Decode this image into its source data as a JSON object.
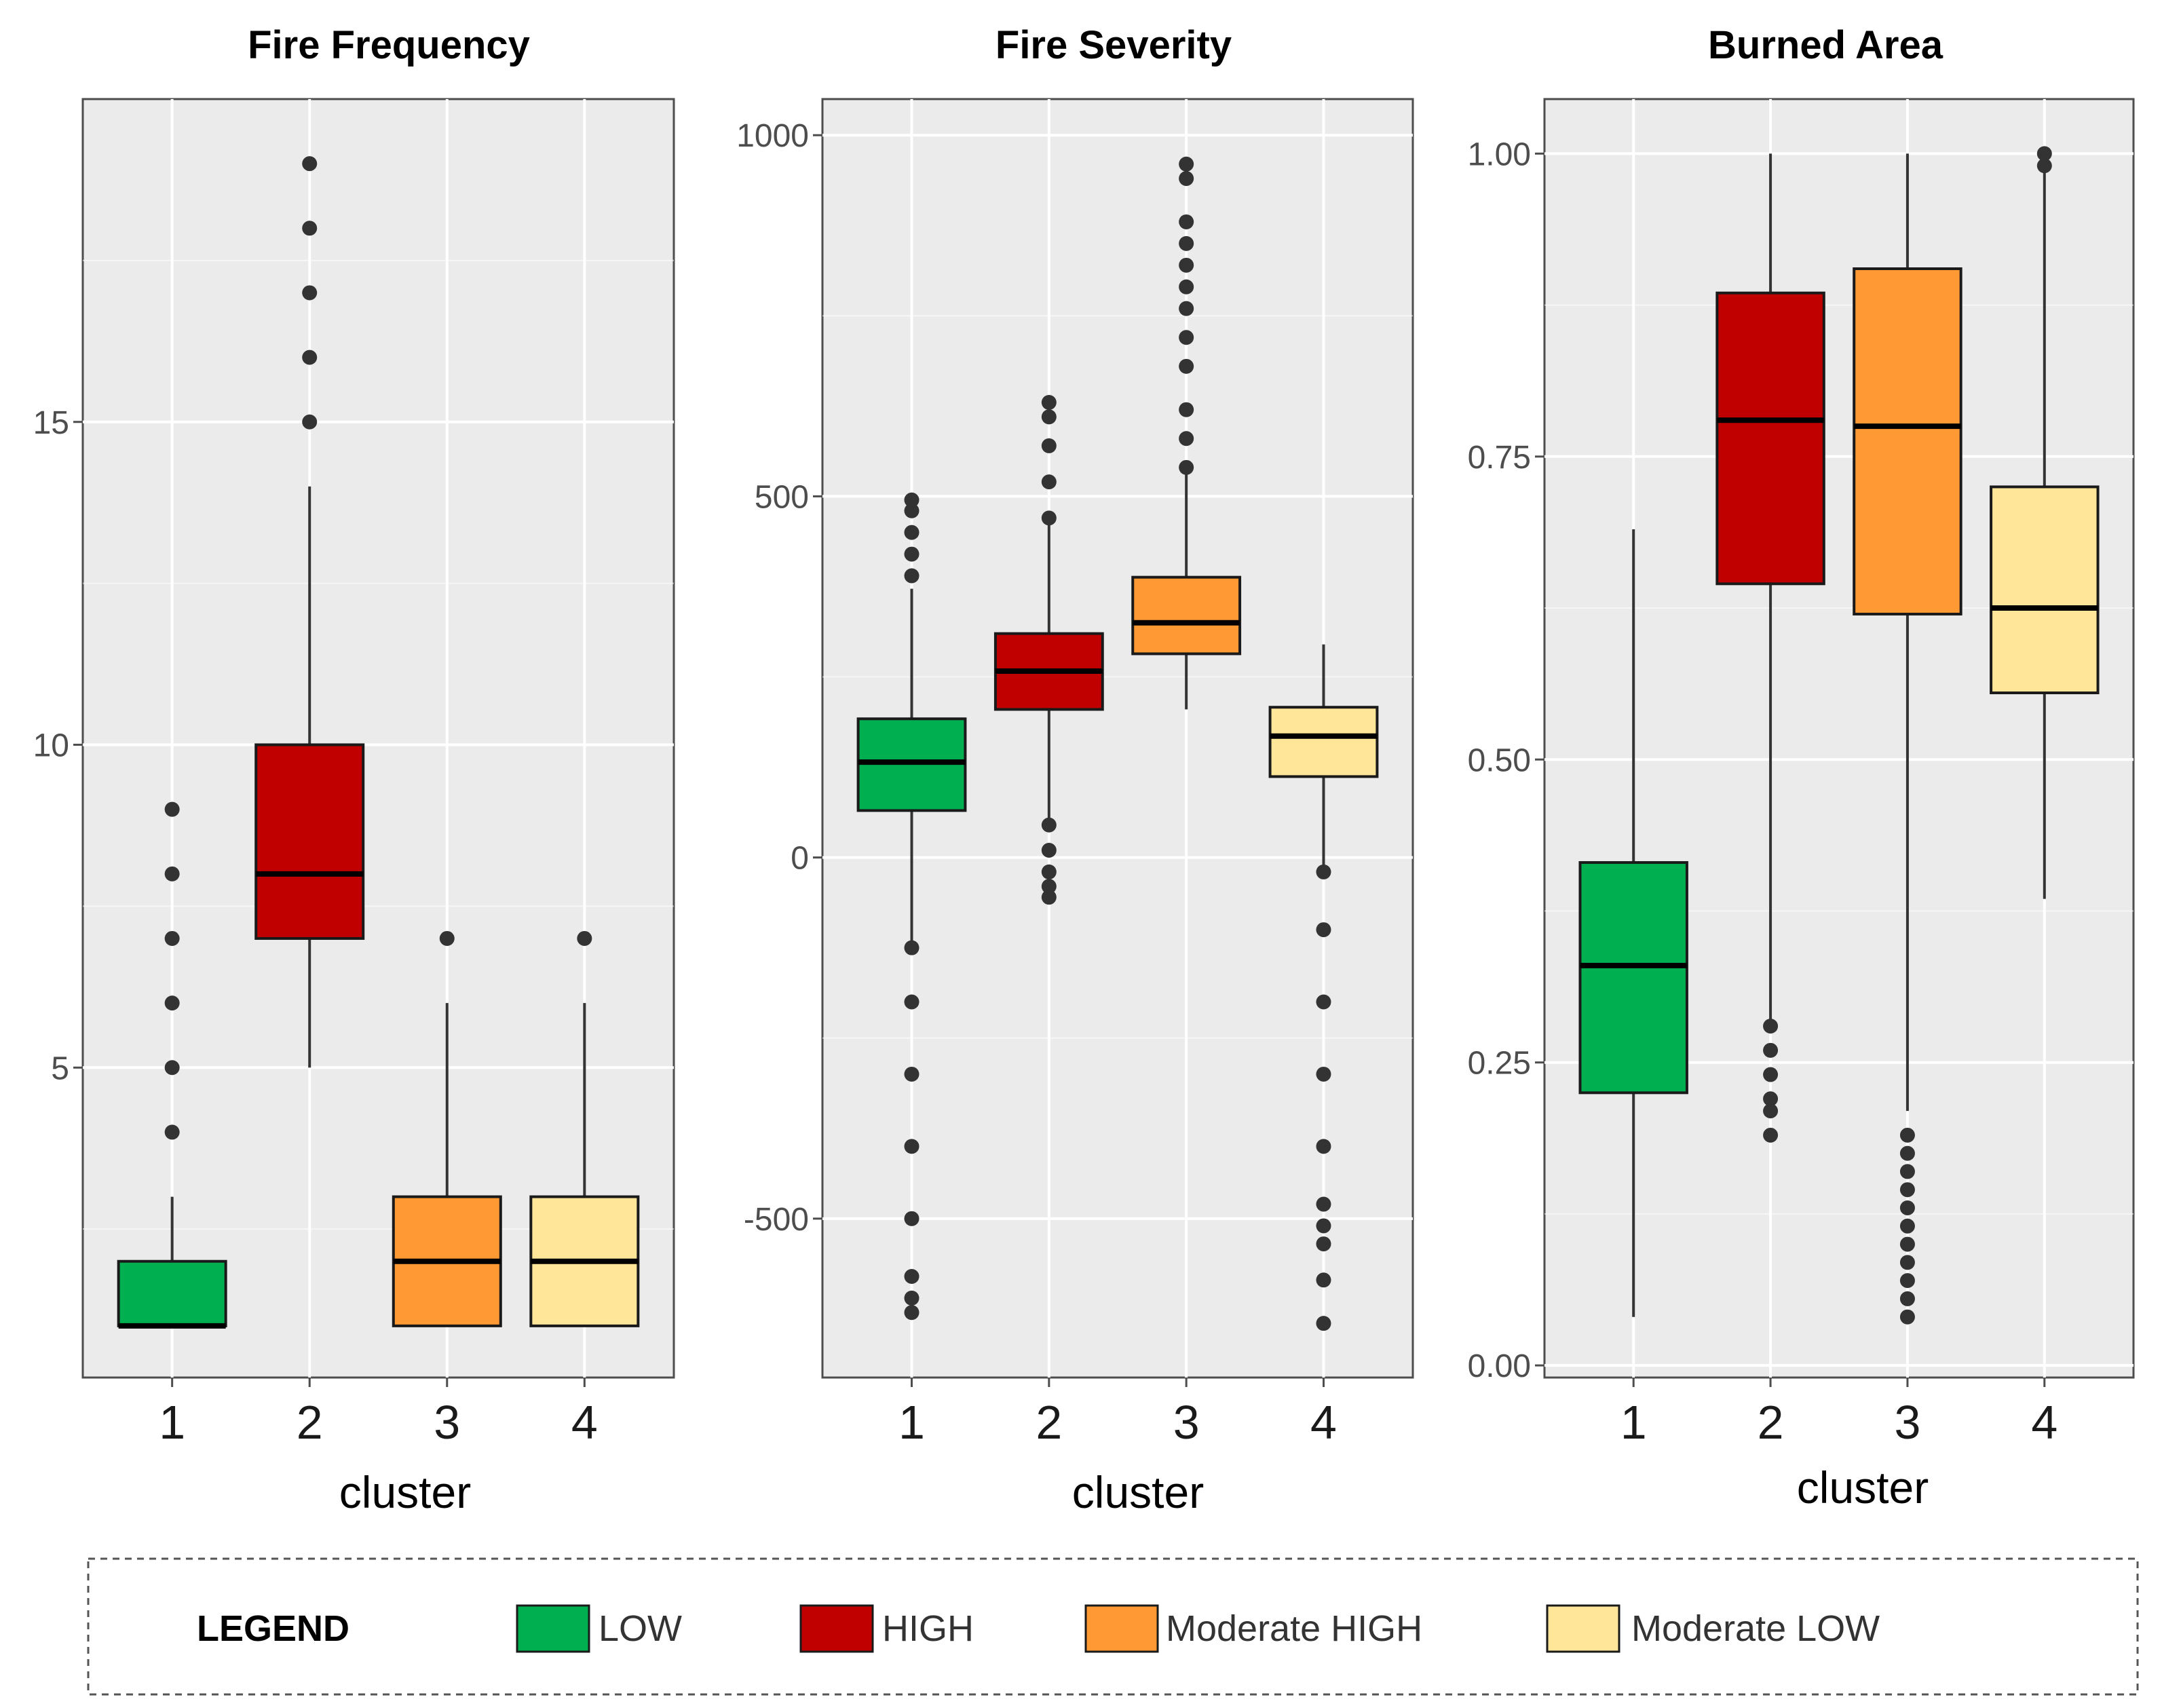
{
  "colors": {
    "panel_background": "#ebebeb",
    "grid_major": "#ffffff",
    "whisker": "#333333",
    "outlier": "#333333",
    "box_border": "#1a1a1a",
    "LOW": "#00b050",
    "HIGH": "#c00000",
    "Moderate HIGH": "#ff9933",
    "Moderate LOW": "#ffe699"
  },
  "legend": {
    "title": "LEGEND",
    "entries": [
      {
        "label": "LOW",
        "color": "#00b050"
      },
      {
        "label": "HIGH",
        "color": "#c00000"
      },
      {
        "label": "Moderate HIGH",
        "color": "#ff9933"
      },
      {
        "label": "Moderate LOW",
        "color": "#ffe699"
      }
    ]
  },
  "chart_data": [
    {
      "type": "box",
      "title": "Fire Frequency",
      "xlabel": "cluster",
      "ylabel": "",
      "categories": [
        "1",
        "2",
        "3",
        "4"
      ],
      "ylim": [
        0.2,
        20
      ],
      "yticks": [
        5,
        10,
        15
      ],
      "ytick_labels": [
        "5",
        "10",
        "15"
      ],
      "boxes": [
        {
          "cluster": "1",
          "group": "LOW",
          "q1": 1,
          "median": 1,
          "q3": 2,
          "whisker_low": 1,
          "whisker_high": 3,
          "outliers": [
            4,
            5,
            6,
            7,
            8,
            9
          ]
        },
        {
          "cluster": "2",
          "group": "HIGH",
          "q1": 7,
          "median": 8,
          "q3": 10,
          "whisker_low": 5,
          "whisker_high": 14,
          "outliers": [
            15,
            16,
            17,
            18,
            19
          ]
        },
        {
          "cluster": "3",
          "group": "Moderate HIGH",
          "q1": 1,
          "median": 2,
          "q3": 3,
          "whisker_low": 1,
          "whisker_high": 6,
          "outliers": [
            7
          ]
        },
        {
          "cluster": "4",
          "group": "Moderate LOW",
          "q1": 1,
          "median": 2,
          "q3": 3,
          "whisker_low": 1,
          "whisker_high": 6,
          "outliers": [
            7
          ]
        }
      ]
    },
    {
      "type": "box",
      "title": "Fire Severity",
      "xlabel": "cluster",
      "ylabel": "",
      "categories": [
        "1",
        "2",
        "3",
        "4"
      ],
      "ylim": [
        -720,
        1050
      ],
      "yticks": [
        -500,
        0,
        500,
        1000
      ],
      "ytick_labels": [
        "-500",
        "0",
        "500",
        "1000"
      ],
      "boxes": [
        {
          "cluster": "1",
          "group": "LOW",
          "q1": 65,
          "median": 132,
          "q3": 192,
          "whisker_low": -115,
          "whisker_high": 372,
          "outliers": [
            -125,
            -200,
            -300,
            -400,
            -500,
            -580,
            -610,
            -630,
            390,
            420,
            450,
            480,
            495
          ]
        },
        {
          "cluster": "2",
          "group": "HIGH",
          "q1": 205,
          "median": 258,
          "q3": 310,
          "whisker_low": 55,
          "whisker_high": 462,
          "outliers": [
            45,
            10,
            -20,
            -40,
            -55,
            470,
            520,
            570,
            610,
            630
          ]
        },
        {
          "cluster": "3",
          "group": "Moderate HIGH",
          "q1": 282,
          "median": 325,
          "q3": 388,
          "whisker_low": 205,
          "whisker_high": 530,
          "outliers": [
            540,
            580,
            620,
            680,
            720,
            760,
            790,
            820,
            850,
            880,
            940,
            960
          ]
        },
        {
          "cluster": "4",
          "group": "Moderate LOW",
          "q1": 112,
          "median": 168,
          "q3": 208,
          "whisker_low": -15,
          "whisker_high": 295,
          "outliers": [
            -20,
            -100,
            -200,
            -300,
            -400,
            -480,
            -510,
            -535,
            -585,
            -645
          ]
        }
      ]
    },
    {
      "type": "box",
      "title": "Burned Area",
      "xlabel": "cluster",
      "ylabel": "",
      "categories": [
        "1",
        "2",
        "3",
        "4"
      ],
      "ylim": [
        -0.01,
        1.045
      ],
      "yticks": [
        0,
        0.25,
        0.5,
        0.75,
        1.0
      ],
      "ytick_labels": [
        "0.00",
        "0.25",
        "0.50",
        "0.75",
        "1.00"
      ],
      "boxes": [
        {
          "cluster": "1",
          "group": "LOW",
          "q1": 0.225,
          "median": 0.33,
          "q3": 0.415,
          "whisker_low": 0.04,
          "whisker_high": 0.69,
          "outliers": []
        },
        {
          "cluster": "2",
          "group": "HIGH",
          "q1": 0.645,
          "median": 0.78,
          "q3": 0.885,
          "whisker_low": 0.285,
          "whisker_high": 1.0,
          "outliers": [
            0.28,
            0.26,
            0.24,
            0.22,
            0.21,
            0.19
          ]
        },
        {
          "cluster": "3",
          "group": "Moderate HIGH",
          "q1": 0.62,
          "median": 0.775,
          "q3": 0.905,
          "whisker_low": 0.21,
          "whisker_high": 1.0,
          "outliers": [
            0.19,
            0.175,
            0.16,
            0.145,
            0.13,
            0.115,
            0.1,
            0.085,
            0.07,
            0.055,
            0.04
          ]
        },
        {
          "cluster": "4",
          "group": "Moderate LOW",
          "q1": 0.555,
          "median": 0.625,
          "q3": 0.725,
          "whisker_low": 0.385,
          "whisker_high": 0.985,
          "outliers": [
            0.99,
            1.0
          ]
        }
      ]
    }
  ]
}
